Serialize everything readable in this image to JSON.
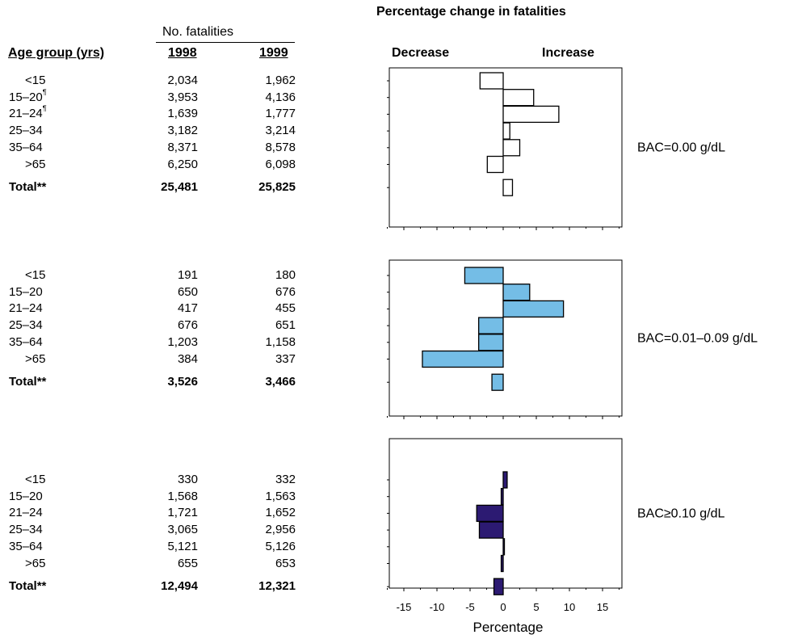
{
  "table": {
    "col_group_header": "No. fatalities",
    "col_age_header": "Age group (yrs)",
    "col_1998_header": "1998",
    "col_1999_header": "1999",
    "footnote_mark": "¶",
    "blocks": [
      {
        "rows": [
          {
            "age": "<15",
            "mark": "",
            "v1998": "2,034",
            "v1999": "1,962"
          },
          {
            "age": "15–20",
            "mark": "¶",
            "v1998": "3,953",
            "v1999": "4,136"
          },
          {
            "age": "21–24",
            "mark": "¶",
            "v1998": "1,639",
            "v1999": "1,777"
          },
          {
            "age": "25–34",
            "mark": "",
            "v1998": "3,182",
            "v1999": "3,214"
          },
          {
            "age": "35–64",
            "mark": "",
            "v1998": "8,371",
            "v1999": "8,578"
          },
          {
            "age": ">65",
            "mark": "",
            "v1998": "6,250",
            "v1999": "6,098"
          }
        ],
        "total": {
          "label": "Total**",
          "v1998": "25,481",
          "v1999": "25,825"
        }
      },
      {
        "rows": [
          {
            "age": "<15",
            "mark": "",
            "v1998": "191",
            "v1999": "180"
          },
          {
            "age": "15–20",
            "mark": "",
            "v1998": "650",
            "v1999": "676"
          },
          {
            "age": "21–24",
            "mark": "",
            "v1998": "417",
            "v1999": "455"
          },
          {
            "age": "25–34",
            "mark": "",
            "v1998": "676",
            "v1999": "651"
          },
          {
            "age": "35–64",
            "mark": "",
            "v1998": "1,203",
            "v1999": "1,158"
          },
          {
            "age": ">65",
            "mark": "",
            "v1998": "384",
            "v1999": "337"
          }
        ],
        "total": {
          "label": "Total**",
          "v1998": "3,526",
          "v1999": "3,466"
        }
      },
      {
        "rows": [
          {
            "age": "<15",
            "mark": "",
            "v1998": "330",
            "v1999": "332"
          },
          {
            "age": "15–20",
            "mark": "",
            "v1998": "1,568",
            "v1999": "1,563"
          },
          {
            "age": "21–24",
            "mark": "",
            "v1998": "1,721",
            "v1999": "1,652"
          },
          {
            "age": "25–34",
            "mark": "",
            "v1998": "3,065",
            "v1999": "2,956"
          },
          {
            "age": "35–64",
            "mark": "",
            "v1998": "5,121",
            "v1999": "5,126"
          },
          {
            "age": ">65",
            "mark": "",
            "v1998": "655",
            "v1999": "653"
          }
        ],
        "total": {
          "label": "Total**",
          "v1998": "12,494",
          "v1999": "12,321"
        }
      }
    ]
  },
  "chart_data": {
    "type": "bar",
    "orientation": "horizontal",
    "title": "Percentage change in fatalities",
    "left_heading": "Decrease",
    "right_heading": "Increase",
    "xlabel": "Percentage",
    "ylabel": "",
    "xlim": [
      -18,
      18
    ],
    "xticks": [
      -15,
      -10,
      -5,
      0,
      5,
      10,
      15
    ],
    "categories": [
      "<15",
      "15–20",
      "21–24",
      "25–34",
      "35–64",
      ">65",
      "Total**"
    ],
    "series": [
      {
        "name": "BAC=0.00 g/dL",
        "color": "#ffffff",
        "values": [
          -3.5,
          4.6,
          8.4,
          1.0,
          2.5,
          -2.4,
          1.4
        ]
      },
      {
        "name": "BAC=0.01–0.09 g/dL",
        "color": "#74bde6",
        "values": [
          -5.8,
          4.0,
          9.1,
          -3.7,
          -3.7,
          -12.2,
          -1.7
        ]
      },
      {
        "name": "BAC≥0.10 g/dL",
        "color": "#2c1a72",
        "values": [
          0.6,
          -0.3,
          -4.0,
          -3.6,
          0.1,
          -0.3,
          -1.4
        ]
      }
    ]
  }
}
